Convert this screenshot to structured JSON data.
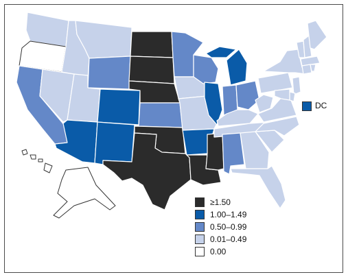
{
  "colors": {
    "dark": "#2b2b2b",
    "blue": "#0a5ba8",
    "mid": "#6488c8",
    "light": "#c6d2ea",
    "white": "#ffffff"
  },
  "legend": {
    "items": [
      {
        "label": "≥1.50",
        "color": "#2b2b2b"
      },
      {
        "label": "1.00–1.49",
        "color": "#0a5ba8"
      },
      {
        "label": "0.50–0.99",
        "color": "#6488c8"
      },
      {
        "label": "0.01–0.49",
        "color": "#c6d2ea"
      },
      {
        "label": "0.00",
        "color": "#ffffff"
      }
    ]
  },
  "dc": {
    "label": "DC",
    "color": "#0a5ba8"
  },
  "state_classes": {
    "WA": "light",
    "OR": "white",
    "CA": "mid",
    "NV": "light",
    "ID": "light",
    "MT": "light",
    "WY": "mid",
    "UT": "light",
    "AZ": "blue",
    "CO": "blue",
    "NM": "blue",
    "ND": "dark",
    "SD": "dark",
    "NE": "dark",
    "KS": "mid",
    "OK": "dark",
    "TX": "dark",
    "MN": "mid",
    "IA": "light",
    "MO": "light",
    "AR": "blue",
    "LA": "dark",
    "WI": "mid",
    "IL": "blue",
    "MS": "dark",
    "MI": "blue",
    "IN": "mid",
    "OH": "mid",
    "KY": "light",
    "TN": "light",
    "AL": "mid",
    "GA": "light",
    "FL": "light",
    "SC": "light",
    "NC": "light",
    "VA": "light",
    "WV": "light",
    "PA": "light",
    "NY": "light",
    "ME": "light",
    "VT": "light",
    "NH": "light",
    "MA": "light",
    "CT": "light",
    "RI": "light",
    "NJ": "light",
    "DE": "light",
    "MD": "light",
    "AK": "white",
    "HI": "white"
  }
}
